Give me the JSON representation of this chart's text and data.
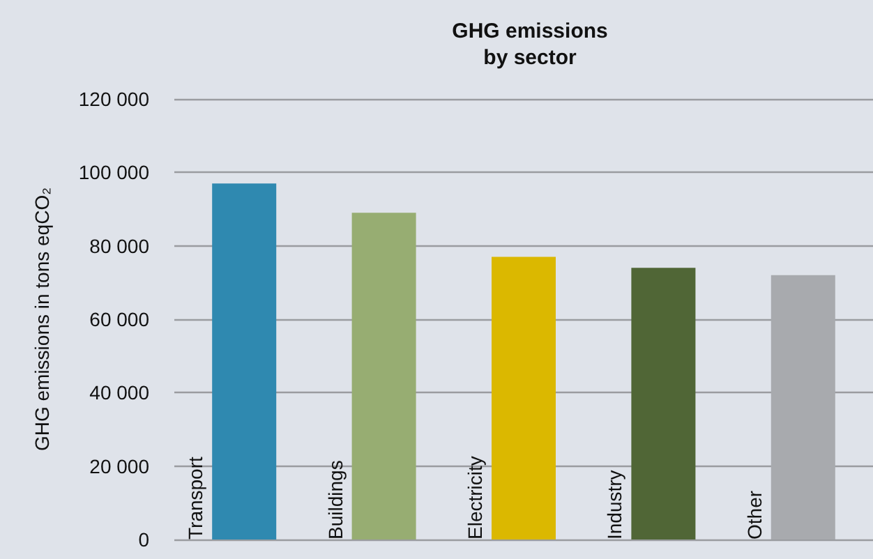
{
  "chart_data": {
    "type": "bar",
    "title": "GHG emissions\nby sector",
    "ylabel": "GHG emissions in tons eqCO₂",
    "categories": [
      "Transport",
      "Buildings",
      "Electricity",
      "Industry",
      "Other"
    ],
    "values": [
      97000,
      89000,
      77000,
      74000,
      72000
    ],
    "colors": [
      "#2f89b0",
      "#97ad72",
      "#dbb800",
      "#506636",
      "#a8aaae"
    ],
    "ylim": [
      0,
      120000
    ],
    "yticks": [
      {
        "value": 0,
        "label": "0"
      },
      {
        "value": 20000,
        "label": "20 000"
      },
      {
        "value": 40000,
        "label": "40 000"
      },
      {
        "value": 60000,
        "label": "60 000"
      },
      {
        "value": 80000,
        "label": "80 000"
      },
      {
        "value": 100000,
        "label": "100 000"
      },
      {
        "value": 120000,
        "label": "120 000"
      }
    ],
    "grid": "y"
  }
}
